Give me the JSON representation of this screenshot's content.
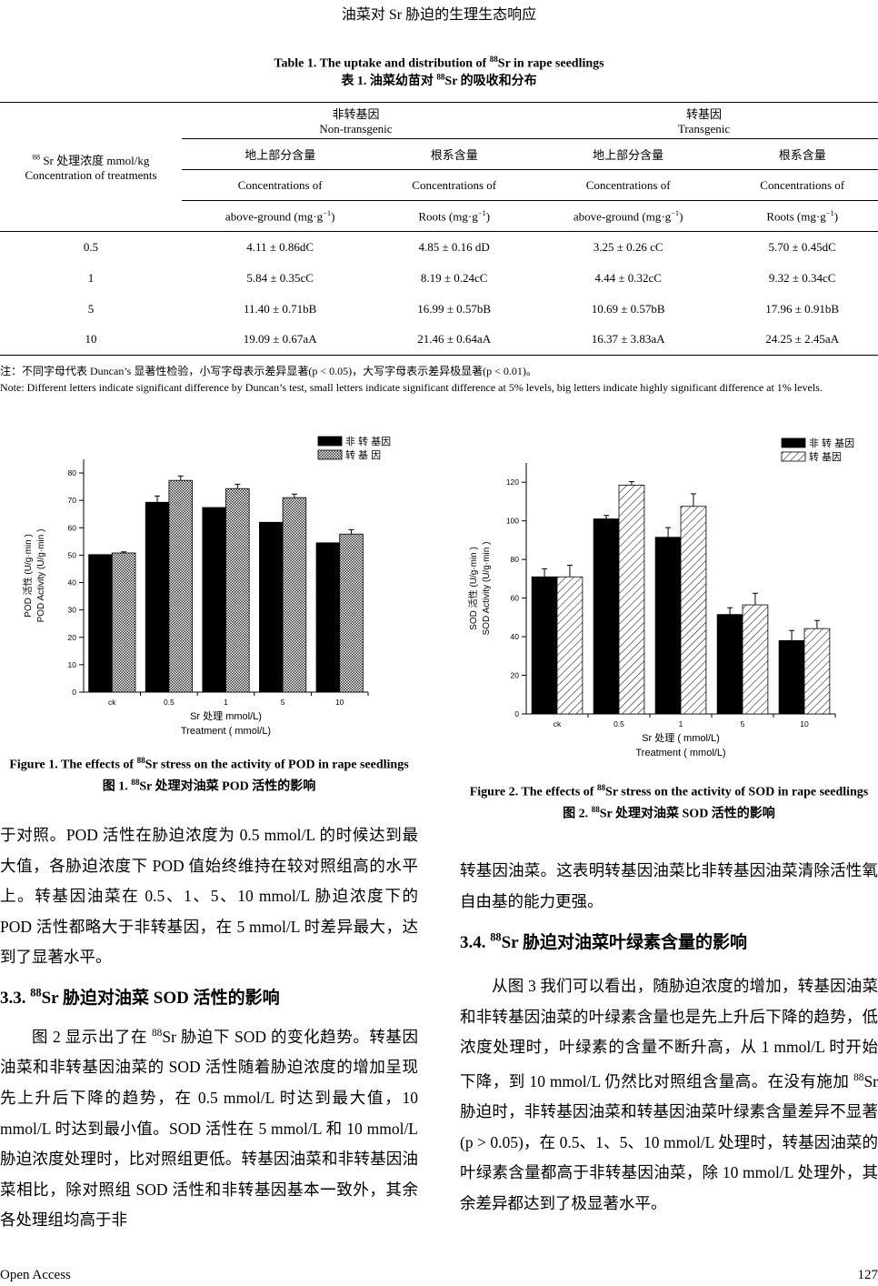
{
  "header": {
    "running_title": "油菜对 Sr 胁迫的生理生态响应"
  },
  "table1": {
    "title_en_pre": "Table 1. The uptake and distribution of ",
    "title_sup": "88",
    "title_en_post": "Sr in rape seedlings",
    "title_cn_pre": "表 1.  油菜幼苗对 ",
    "title_cn_post": "Sr 的吸收和分布",
    "row_header_sup": "88",
    "row_header_cn": " Sr 处理浓度 mmol/kg",
    "row_header_en": "Concentration of treatments",
    "groups": [
      {
        "cn": "非转基因",
        "en": "Non-transgenic"
      },
      {
        "cn": "转基因",
        "en": "Transgenic"
      }
    ],
    "columns": [
      {
        "cn": "地上部分含量",
        "en1": "Concentrations of",
        "en2": "above-ground (mg·g",
        "unit_sup": "−1",
        "close": ")"
      },
      {
        "cn": "根系含量",
        "en1": "Concentrations of",
        "en2": "Roots (mg·g",
        "unit_sup": "−1",
        "close": ")"
      },
      {
        "cn": "地上部分含量",
        "en1": "Concentrations of",
        "en2": "above-ground (mg·g",
        "unit_sup": "−1",
        "close": ")"
      },
      {
        "cn": "根系含量",
        "en1": "Concentrations of",
        "en2": "Roots (mg·g",
        "unit_sup": "−1",
        "close": ")"
      }
    ],
    "rows": [
      [
        "0.5",
        "4.11 ± 0.86dC",
        "4.85 ± 0.16 dD",
        "3.25 ± 0.26 cC",
        "5.70 ± 0.45dC"
      ],
      [
        "1",
        "5.84 ± 0.35cC",
        "8.19 ± 0.24cC",
        "4.44 ± 0.32cC",
        "9.32 ± 0.34cC"
      ],
      [
        "5",
        "11.40 ± 0.71bB",
        "16.99 ± 0.57bB",
        "10.69 ± 0.57bB",
        "17.96 ± 0.91bB"
      ],
      [
        "10",
        "19.09 ± 0.67aA",
        "21.46 ± 0.64aA",
        "16.37 ± 3.83aA",
        "24.25 ± 2.45aA"
      ]
    ],
    "note_cn": "注：不同字母代表 Duncan’s 显著性检验，小写字母表示差异显著(p < 0.05)，大写字母表示差异极显著(p < 0.01)。",
    "note_en": "Note: Different letters indicate significant difference by Duncan’s test, small letters indicate significant difference at 5% levels, big letters indicate highly significant difference at 1% levels."
  },
  "chart_data": [
    {
      "type": "bar",
      "categories": [
        "ck",
        "0.5",
        "1",
        "5",
        "10"
      ],
      "series": [
        {
          "name": "非 转 基因",
          "values": [
            50.2,
            69.3,
            67.4,
            62.0,
            54.5
          ],
          "errors": [
            0,
            2.3,
            0,
            0,
            0
          ],
          "fill": "black"
        },
        {
          "name": "转 基 因",
          "values": [
            50.8,
            77.3,
            74.3,
            71.0,
            57.7
          ],
          "errors": [
            0.4,
            1.6,
            1.6,
            1.3,
            1.6
          ],
          "fill": "checker"
        }
      ],
      "ylabel_cn": "POD  活性  (U/g·min )",
      "ylabel_en": "POD Activity (U/g·min )",
      "xlabel_cn": "Sr 处理 mmol/L)",
      "xlabel_en": "Treatment   ( mmol/L)",
      "ylim": [
        0,
        85
      ],
      "yticks": [
        0,
        10,
        20,
        30,
        40,
        50,
        60,
        70,
        80
      ],
      "legend": "top-right",
      "grid": false
    },
    {
      "type": "bar",
      "categories": [
        "ck",
        "0.5",
        "1",
        "5",
        "10"
      ],
      "series": [
        {
          "name": "非  转  基因",
          "values": [
            71,
            101,
            91.5,
            51.5,
            38
          ],
          "errors": [
            4.2,
            1.8,
            5,
            3.5,
            5.2
          ],
          "fill": "black"
        },
        {
          "name": "转  基因",
          "values": [
            71,
            118.5,
            107.5,
            56.5,
            44.2
          ],
          "errors": [
            6,
            1.8,
            6.5,
            6,
            4.2
          ],
          "fill": "hatch"
        }
      ],
      "ylabel_cn": "SOD  活性  (U/g·min )",
      "ylabel_en": "SOD Activity (U/g·min )",
      "xlabel_cn": "Sr 处理 ( mmol/L)",
      "xlabel_en": "Treatment   ( mmol/L)",
      "ylim": [
        0,
        130
      ],
      "yticks": [
        0,
        20,
        40,
        60,
        80,
        100,
        120
      ],
      "legend": "top-right",
      "grid": false
    }
  ],
  "figures": {
    "fig1_en_pre": "Figure 1. The effects of ",
    "fig1_en_post": "Sr stress on the activity of POD in rape seedlings",
    "fig1_cn_pre": "图 1. ",
    "fig1_cn_post": "Sr 处理对油菜 POD 活性的影响",
    "fig2_en_pre": "Figure 2. The effects of ",
    "fig2_en_post": "Sr stress on the activity of SOD in rape seedlings",
    "fig2_cn_pre": "图 2. ",
    "fig2_cn_post": "Sr 处理对油菜 SOD 活性的影响",
    "sup": "88"
  },
  "text": {
    "left_p1": "于对照。POD 活性在胁迫浓度为 0.5  mmol/L 的时候达到最大值，各胁迫浓度下  POD  值始终维持在较对照组高的水平上。转基因油菜在 0.5、1、5、10 mmol/L 胁迫浓度下的  POD  活性都略大于非转基因，在  5 mmol/L 时差异最大，达到了显著水平。",
    "h33_pre": "3.3. ",
    "h33_sup": "88",
    "h33_post": "Sr 胁迫对油菜 SOD 活性的影响",
    "left_p2_pre": "图 2 显示出了在 ",
    "left_p2_sup": "88",
    "left_p2_post": "Sr 胁迫下 SOD 的变化趋势。转基因油菜和非转基因油菜的  SOD  活性随着胁迫浓度的增加呈现先上升后下降的趋势，在 0.5 mmol/L 时达到最大值，10 mmol/L 时达到最小值。SOD 活性在 5 mmol/L 和 10 mmol/L 胁迫浓度处理时，比对照组更低。转基因油菜和非转基因油菜相比，除对照组 SOD 活性和非转基因基本一致外，其余各处理组均高于非",
    "right_p1": "转基因油菜。这表明转基因油菜比非转基因油菜清除活性氧自由基的能力更强。",
    "h34_pre": "3.4. ",
    "h34_sup": "88",
    "h34_post": "Sr 胁迫对油菜叶绿素含量的影响",
    "right_p2_pre": "从图 3 我们可以看出，随胁迫浓度的增加，转基因油菜和非转基因油菜的叶绿素含量也是先上升后下降的趋势，低浓度处理时，叶绿素的含量不断升高，从 1  mmol/L 时开始下降，到 10  mmol/L 仍然比对照组含量高。在没有施加 ",
    "right_p2_sup": "88",
    "right_p2_post": "Sr 胁迫时，非转基因油菜和转基因油菜叶绿素含量差异不显著(p > 0.05)，在 0.5、1、5、10  mmol/L 处理时，转基因油菜的叶绿素含量都高于非转基因油菜，除 10 mmol/L 处理外，其余差异都达到了极显著水平。"
  },
  "footer": {
    "left": "Open Access",
    "page": "127"
  }
}
